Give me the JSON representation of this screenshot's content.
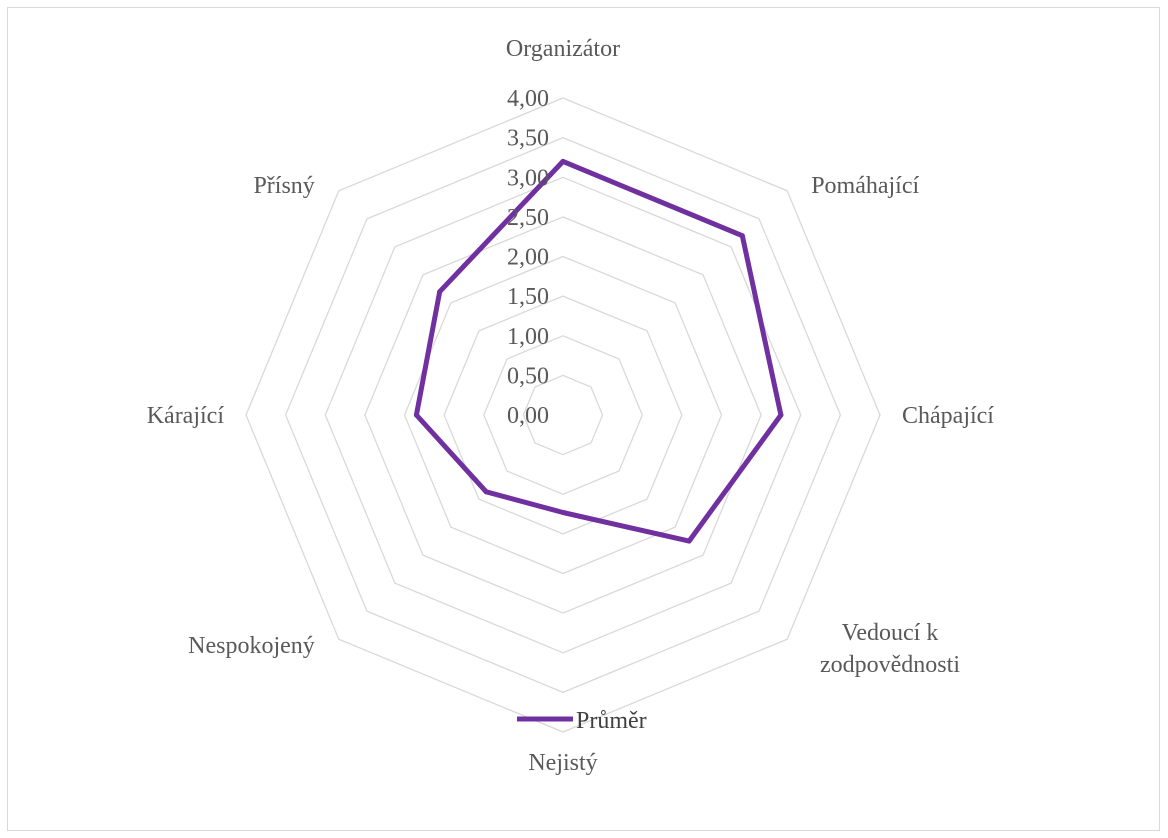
{
  "chart_data": {
    "type": "radar",
    "title": "",
    "categories": [
      "Organizátor",
      "Pomáhající",
      "Chápající",
      "Vedoucí k zodpovědnosti",
      "Nejistý",
      "Nespokojený",
      "Kárající",
      "Přísný"
    ],
    "category_lines": [
      [
        "Organizátor"
      ],
      [
        "Pomáhající"
      ],
      [
        "Chápající"
      ],
      [
        "Vedoucí k",
        "zodpovědnosti"
      ],
      [
        "Nejistý"
      ],
      [
        "Nespokojený"
      ],
      [
        "Kárající"
      ],
      [
        "Přísný"
      ]
    ],
    "tick_labels": [
      "0,00",
      "0,50",
      "1,00",
      "1,50",
      "2,00",
      "2,50",
      "3,00",
      "3,50",
      "4,00"
    ],
    "rmin": 0,
    "rmax": 4,
    "tick_step": 0.5,
    "grid": true,
    "legend_position": "bottom",
    "series": [
      {
        "name": "Průměr",
        "color": "#7030a0",
        "values": [
          3.2,
          3.2,
          2.75,
          2.25,
          1.23,
          1.37,
          1.85,
          2.2
        ]
      }
    ]
  }
}
